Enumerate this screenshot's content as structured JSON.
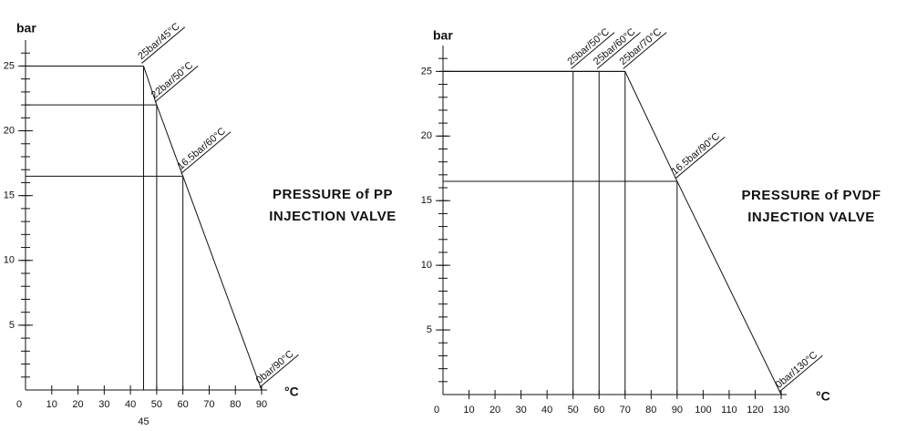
{
  "chart_data": [
    {
      "type": "line",
      "title_lines": [
        "PRESSURE of PP",
        "INJECTION VALVE"
      ],
      "y_label": "bar",
      "x_label": "°C",
      "x": [
        45,
        50,
        60,
        90
      ],
      "series": [
        {
          "color": "#111111",
          "values": [
            25,
            22,
            16.5,
            0
          ]
        }
      ],
      "annotations": [
        "25bar/45°C",
        "22bar/50°C",
        "16.5bar/60°C",
        "0bar/90°C"
      ],
      "xlim": [
        0,
        90
      ],
      "ylim": [
        0,
        27
      ],
      "xticks": [
        0,
        10,
        20,
        30,
        40,
        50,
        60,
        70,
        80,
        90
      ],
      "x_marker": 45,
      "yticks": [
        5,
        10,
        15,
        20,
        25
      ],
      "y_minor_step": 1
    },
    {
      "type": "line",
      "title_lines": [
        "PRESSURE of PVDF",
        "INJECTION VALVE"
      ],
      "y_label": "bar",
      "x_label": "°C",
      "x": [
        50,
        60,
        70,
        90,
        130
      ],
      "series": [
        {
          "color": "#111111",
          "values": [
            25,
            25,
            25,
            16.5,
            0
          ]
        }
      ],
      "annotations": [
        "25bar/50°C",
        "25bar/60°C",
        "25bar/70°C",
        "16.5bar/90°C",
        "0bar/130°C"
      ],
      "xlim": [
        0,
        130
      ],
      "ylim": [
        0,
        27
      ],
      "xticks": [
        0,
        10,
        20,
        30,
        40,
        50,
        60,
        70,
        80,
        90,
        100,
        110,
        120,
        130
      ],
      "yticks": [
        5,
        10,
        15,
        20,
        25
      ],
      "y_minor_step": 1
    }
  ]
}
